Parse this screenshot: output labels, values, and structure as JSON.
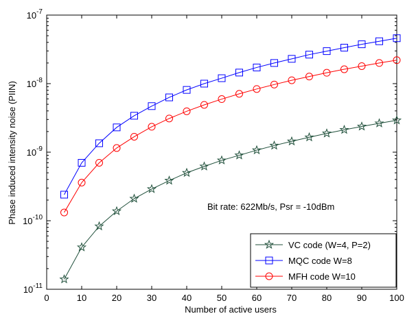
{
  "chart_data": {
    "type": "line",
    "title": "",
    "xlabel": "Number of active users",
    "ylabel": "Phase induced intensity noise (PIIN)",
    "annotation": "Bit rate: 622Mb/s, Psr = -10dBm",
    "xlim": [
      0,
      100
    ],
    "ylim": [
      1e-11,
      1e-07
    ],
    "yscale": "log",
    "grid": false,
    "legend_position": "bottom-right",
    "x_ticks": [
      0,
      10,
      20,
      30,
      40,
      50,
      60,
      70,
      80,
      90,
      100
    ],
    "x_tick_labels": [
      "0",
      "10",
      "20",
      "30",
      "40",
      "50",
      "60",
      "70",
      "80",
      "90",
      "100"
    ],
    "y_ticks": [
      {
        "value": 1e-11,
        "base": "10",
        "exp": "-11"
      },
      {
        "value": 1e-10,
        "base": "10",
        "exp": "-10"
      },
      {
        "value": 1e-09,
        "base": "10",
        "exp": "-9"
      },
      {
        "value": 1e-08,
        "base": "10",
        "exp": "-8"
      },
      {
        "value": 1e-07,
        "base": "10",
        "exp": "-7"
      }
    ],
    "x": [
      5,
      10,
      15,
      20,
      25,
      30,
      35,
      40,
      45,
      50,
      55,
      60,
      65,
      70,
      75,
      80,
      85,
      90,
      95,
      100
    ],
    "series": [
      {
        "name": "VC code (W=4, P=2)",
        "color": "#1f4f3a",
        "marker": "star",
        "values": [
          1.4e-11,
          4.1e-11,
          8.3e-11,
          1.38e-10,
          2.1e-10,
          2.9e-10,
          3.85e-10,
          5e-10,
          6.2e-10,
          7.6e-10,
          9e-10,
          1.07e-09,
          1.25e-09,
          1.44e-09,
          1.65e-09,
          1.88e-09,
          2.12e-09,
          2.37e-09,
          2.64e-09,
          2.92e-09
        ]
      },
      {
        "name": "MQC code W=8",
        "color": "#0000ff",
        "marker": "square",
        "values": [
          2.4e-10,
          7e-10,
          1.35e-09,
          2.3e-09,
          3.4e-09,
          4.7e-09,
          6.3e-09,
          8.1e-09,
          1e-08,
          1.2e-08,
          1.45e-08,
          1.72e-08,
          2e-08,
          2.3e-08,
          2.65e-08,
          2.98e-08,
          3.35e-08,
          3.75e-08,
          4.15e-08,
          4.6e-08
        ]
      },
      {
        "name": "MFH code W=10",
        "color": "#ff0000",
        "marker": "circle",
        "values": [
          1.32e-10,
          3.6e-10,
          7e-10,
          1.15e-09,
          1.68e-09,
          2.35e-09,
          3.1e-09,
          3.95e-09,
          4.9e-09,
          5.95e-09,
          7.1e-09,
          8.35e-09,
          9.7e-09,
          1.12e-08,
          1.27e-08,
          1.44e-08,
          1.62e-08,
          1.8e-08,
          2e-08,
          2.2e-08
        ]
      }
    ]
  }
}
